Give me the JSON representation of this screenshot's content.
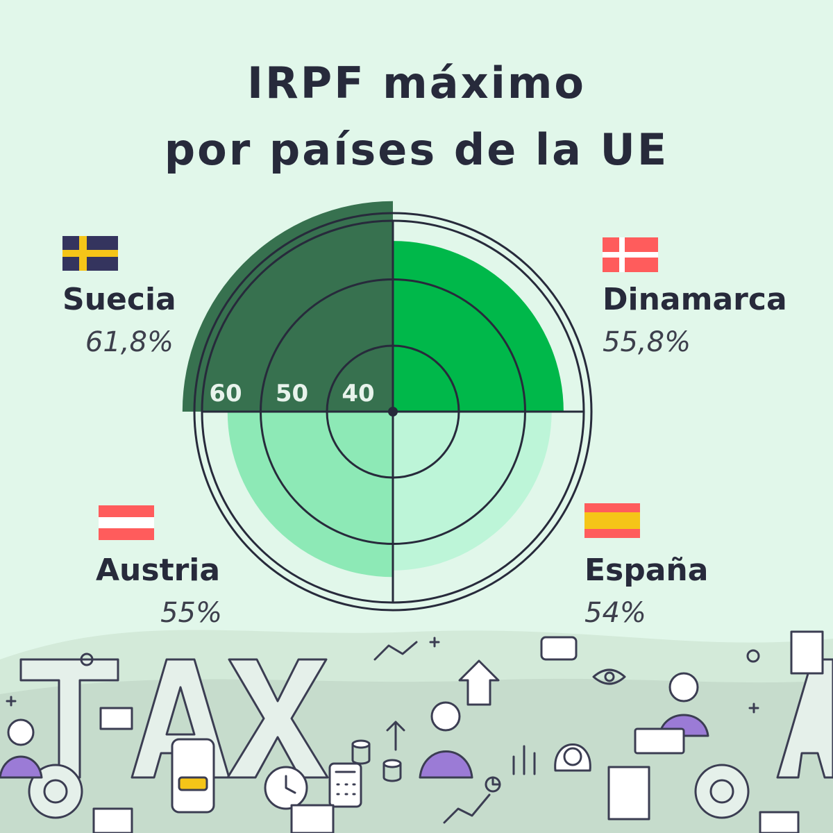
{
  "title_line1": "IRPF máximo",
  "title_line2": "por países de la UE",
  "colors": {
    "background": "#e1f7ea",
    "suecia": "#37714f",
    "dinamarca": "#00b84a",
    "austria": "#8de9b6",
    "espana": "#bdf5d8",
    "outline": "#272a3b"
  },
  "chart_data": {
    "type": "polar-area",
    "scale": {
      "min": 30,
      "max": 64,
      "ticks": [
        40,
        50,
        60
      ]
    },
    "tick_labels": [
      "40",
      "50",
      "60"
    ],
    "series": [
      {
        "country": "Suecia",
        "value": 61.8,
        "label": "61,8%",
        "flag": "sweden-flag"
      },
      {
        "country": "Dinamarca",
        "value": 55.8,
        "label": "55,8%",
        "flag": "denmark-flag"
      },
      {
        "country": "España",
        "value": 54,
        "label": "54%",
        "flag": "spain-flag"
      },
      {
        "country": "Austria",
        "value": 55,
        "label": "55%",
        "flag": "austria-flag"
      }
    ]
  }
}
